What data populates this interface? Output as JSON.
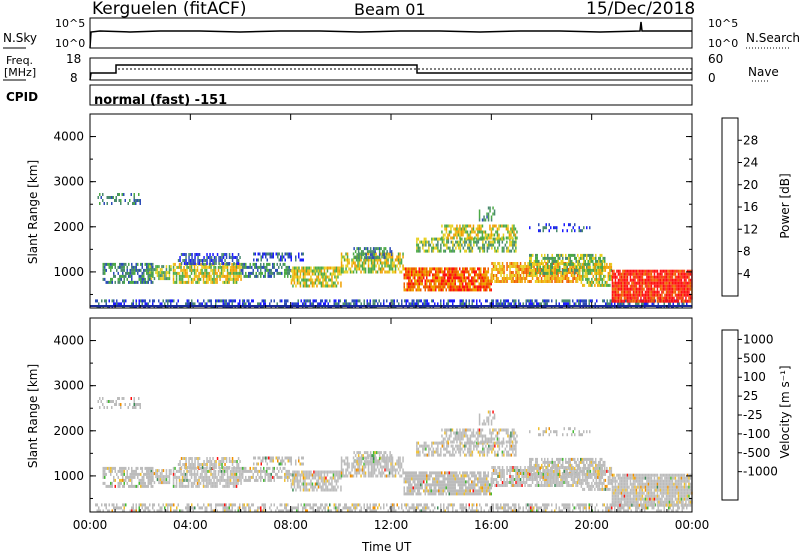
{
  "header": {
    "station": "Kerguelen (fitACF)",
    "beam": "Beam 01",
    "date": "15/Dec/2018"
  },
  "top_panels": {
    "nsky_label": "N.Sky",
    "nsearch_label": "N.Search",
    "nsky_ticks": [
      "10^5",
      "10^0"
    ],
    "nsearch_ticks": [
      "10^5",
      "10^0"
    ],
    "freq_label_1": "Freq.",
    "freq_label_2": "[MHz]",
    "freq_ticks": [
      "18",
      "8"
    ],
    "nave_label": "Nave",
    "nave_ticks": [
      "60",
      "0"
    ],
    "cpid_label": "CPID",
    "cpid_text": "normal (fast) -151"
  },
  "chart_data": [
    {
      "type": "heatmap",
      "name": "power",
      "ylabel": "Slant Range [km]",
      "ylim": [
        200,
        4500
      ],
      "yticks": [
        "1000",
        "2000",
        "3000",
        "4000"
      ],
      "colorbar_label": "Power [dB]",
      "colorbar_ticks": [
        "4",
        "8",
        "12",
        "16",
        "20",
        "24",
        "28"
      ],
      "colors": [
        "#1a1aff",
        "#2d4db8",
        "#4a8a6e",
        "#4caa45",
        "#e8d020",
        "#f0a000",
        "#f06000",
        "#ff1010"
      ]
    },
    {
      "type": "heatmap",
      "name": "velocity",
      "xlabel": "Time UT",
      "xticks": [
        "00:00",
        "04:00",
        "08:00",
        "12:00",
        "16:00",
        "20:00",
        "00:00"
      ],
      "ylabel": "Slant Range [km]",
      "ylim": [
        200,
        4500
      ],
      "yticks": [
        "1000",
        "2000",
        "3000",
        "4000"
      ],
      "colorbar_label": "Velocity [m s⁻¹]",
      "colorbar_ticks": [
        "1000",
        "500",
        "100",
        "25",
        "-25",
        "-100",
        "-500",
        "-1000"
      ],
      "colors": [
        "#1a2acc",
        "#3355bb",
        "#3a8a55",
        "#44bb33",
        "#bcbcbc",
        "#f0c030",
        "#f09000",
        "#f06000",
        "#ff1010"
      ]
    }
  ]
}
